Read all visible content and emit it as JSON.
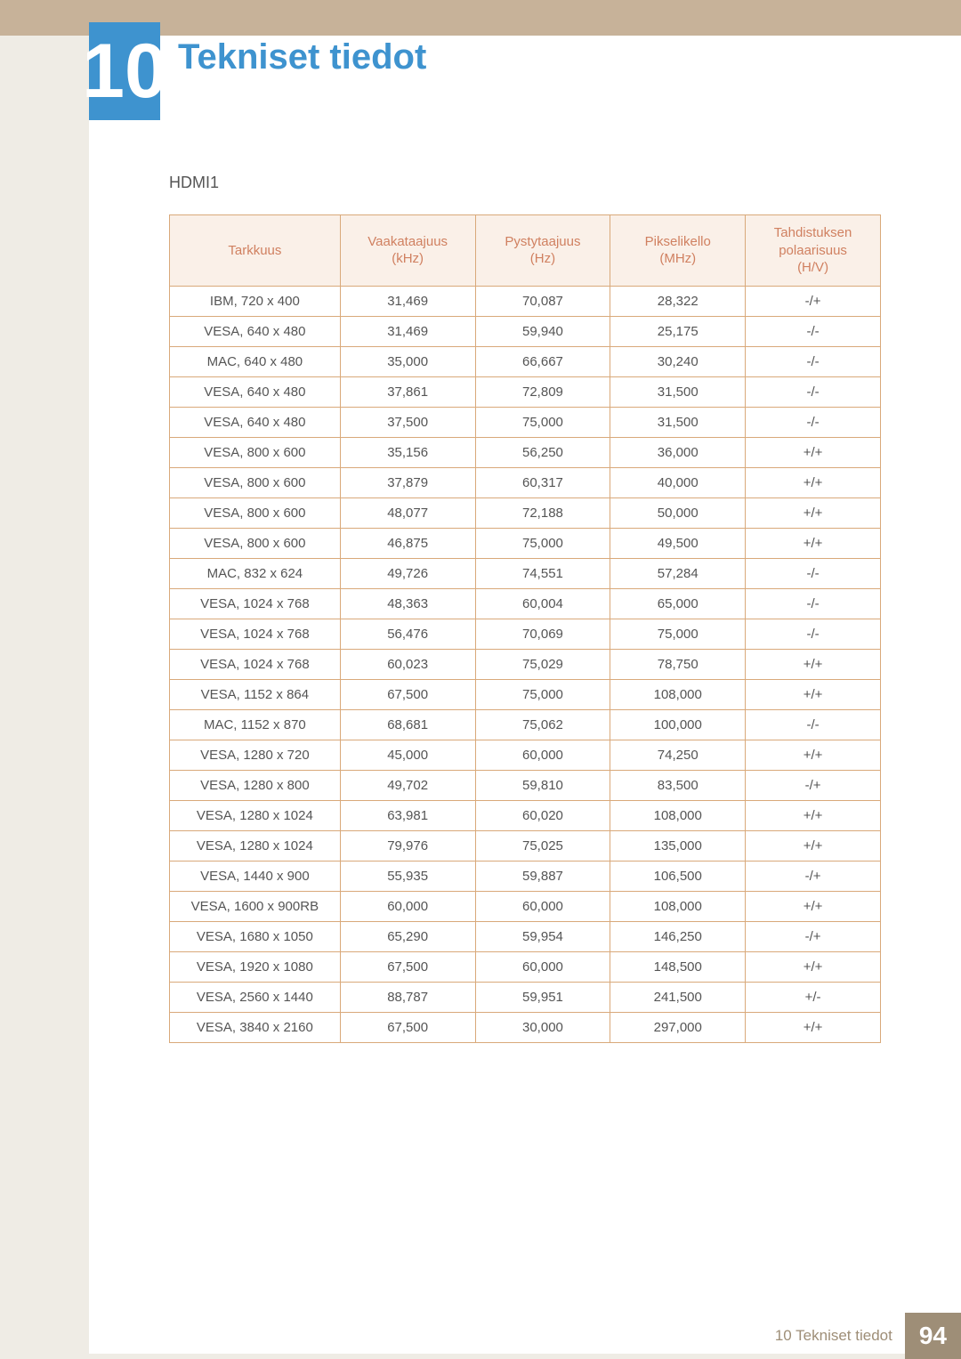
{
  "chapter_number": "10",
  "page_title": "Tekniset tiedot",
  "section_label": "HDMI1",
  "footer_label": "10 Tekniset tiedot",
  "page_number": "94",
  "colors": {
    "top_band": "#c7b299",
    "side_band": "#efece5",
    "chapter_box": "#3e93cf",
    "title_text": "#3e93cf",
    "header_bg": "#faf0e8",
    "header_text": "#d08060",
    "border": "#d9a97a",
    "body_text": "#555555",
    "footer_text": "#9e8e77",
    "footer_page_bg": "#9e8e77"
  },
  "table": {
    "columns": [
      {
        "line1": "Tarkkuus",
        "line2": ""
      },
      {
        "line1": "Vaakataajuus",
        "line2": "(kHz)"
      },
      {
        "line1": "Pystytaajuus",
        "line2": "(Hz)"
      },
      {
        "line1": "Pikselikello",
        "line2": "(MHz)"
      },
      {
        "line1": "Tahdistuksen",
        "line2": "polaarisuus",
        "line3": "(H/V)"
      }
    ],
    "rows": [
      [
        "IBM, 720 x 400",
        "31,469",
        "70,087",
        "28,322",
        "-/+"
      ],
      [
        "VESA, 640 x 480",
        "31,469",
        "59,940",
        "25,175",
        "-/-"
      ],
      [
        "MAC, 640 x 480",
        "35,000",
        "66,667",
        "30,240",
        "-/-"
      ],
      [
        "VESA, 640 x 480",
        "37,861",
        "72,809",
        "31,500",
        "-/-"
      ],
      [
        "VESA, 640 x 480",
        "37,500",
        "75,000",
        "31,500",
        "-/-"
      ],
      [
        "VESA, 800 x 600",
        "35,156",
        "56,250",
        "36,000",
        "+/+"
      ],
      [
        "VESA, 800 x 600",
        "37,879",
        "60,317",
        "40,000",
        "+/+"
      ],
      [
        "VESA, 800 x 600",
        "48,077",
        "72,188",
        "50,000",
        "+/+"
      ],
      [
        "VESA, 800 x 600",
        "46,875",
        "75,000",
        "49,500",
        "+/+"
      ],
      [
        "MAC, 832 x 624",
        "49,726",
        "74,551",
        "57,284",
        "-/-"
      ],
      [
        "VESA, 1024 x 768",
        "48,363",
        "60,004",
        "65,000",
        "-/-"
      ],
      [
        "VESA, 1024 x 768",
        "56,476",
        "70,069",
        "75,000",
        "-/-"
      ],
      [
        "VESA, 1024 x 768",
        "60,023",
        "75,029",
        "78,750",
        "+/+"
      ],
      [
        "VESA, 1152 x 864",
        "67,500",
        "75,000",
        "108,000",
        "+/+"
      ],
      [
        "MAC, 1152 x 870",
        "68,681",
        "75,062",
        "100,000",
        "-/-"
      ],
      [
        "VESA, 1280 x 720",
        "45,000",
        "60,000",
        "74,250",
        "+/+"
      ],
      [
        "VESA, 1280 x 800",
        "49,702",
        "59,810",
        "83,500",
        "-/+"
      ],
      [
        "VESA, 1280 x 1024",
        "63,981",
        "60,020",
        "108,000",
        "+/+"
      ],
      [
        "VESA, 1280 x 1024",
        "79,976",
        "75,025",
        "135,000",
        "+/+"
      ],
      [
        "VESA, 1440 x 900",
        "55,935",
        "59,887",
        "106,500",
        "-/+"
      ],
      [
        "VESA, 1600 x 900RB",
        "60,000",
        "60,000",
        "108,000",
        "+/+"
      ],
      [
        "VESA, 1680 x 1050",
        "65,290",
        "59,954",
        "146,250",
        "-/+"
      ],
      [
        "VESA, 1920 x 1080",
        "67,500",
        "60,000",
        "148,500",
        "+/+"
      ],
      [
        "VESA, 2560 x 1440",
        "88,787",
        "59,951",
        "241,500",
        "+/-"
      ],
      [
        "VESA, 3840 x 2160",
        "67,500",
        "30,000",
        "297,000",
        "+/+"
      ]
    ]
  }
}
